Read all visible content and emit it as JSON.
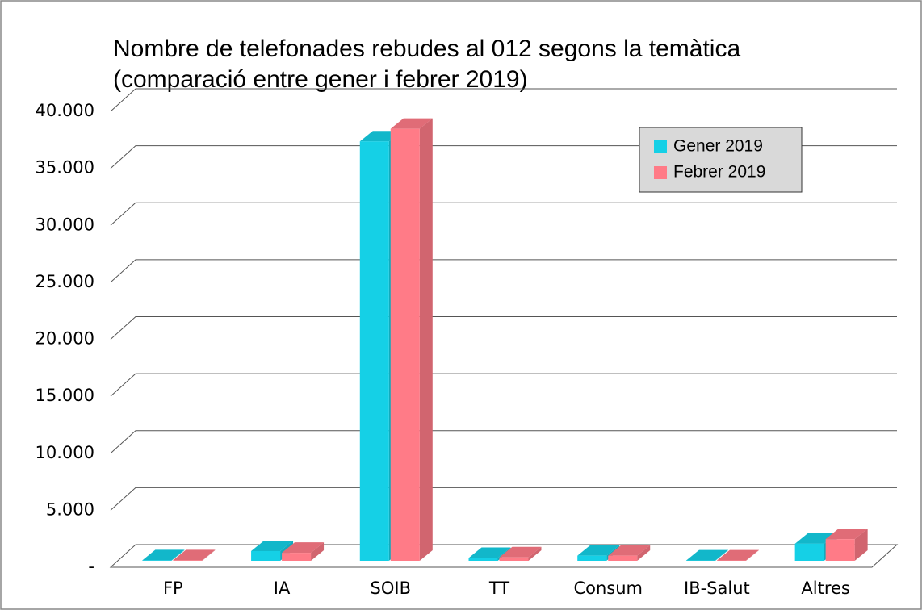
{
  "chart_data": {
    "type": "bar3d",
    "title": [
      "Nombre de telefonades rebudes al 012 segons la temàtica",
      "(comparació entre gener i febrer 2019)"
    ],
    "categories": [
      "FP",
      "IA",
      "SOIB",
      "TT",
      "Consum",
      "IB-Salut",
      "Altres"
    ],
    "series": [
      {
        "name": "Gener 2019",
        "color": "#15d0e6",
        "values": [
          40,
          850,
          36800,
          250,
          450,
          30,
          1500
        ]
      },
      {
        "name": "Febrer 2019",
        "color": "#ff7b87",
        "values": [
          40,
          700,
          37900,
          300,
          450,
          30,
          1900
        ]
      }
    ],
    "ylim": [
      0,
      40000
    ],
    "yticks": [
      {
        "value": 0,
        "label": "-"
      },
      {
        "value": 5000,
        "label": "5.000"
      },
      {
        "value": 10000,
        "label": "10.000"
      },
      {
        "value": 15000,
        "label": "15.000"
      },
      {
        "value": 20000,
        "label": "20.000"
      },
      {
        "value": 25000,
        "label": "25.000"
      },
      {
        "value": 30000,
        "label": "30.000"
      },
      {
        "value": 35000,
        "label": "35.000"
      },
      {
        "value": 40000,
        "label": "40.000"
      }
    ],
    "grid": true,
    "legend": "upper right"
  }
}
